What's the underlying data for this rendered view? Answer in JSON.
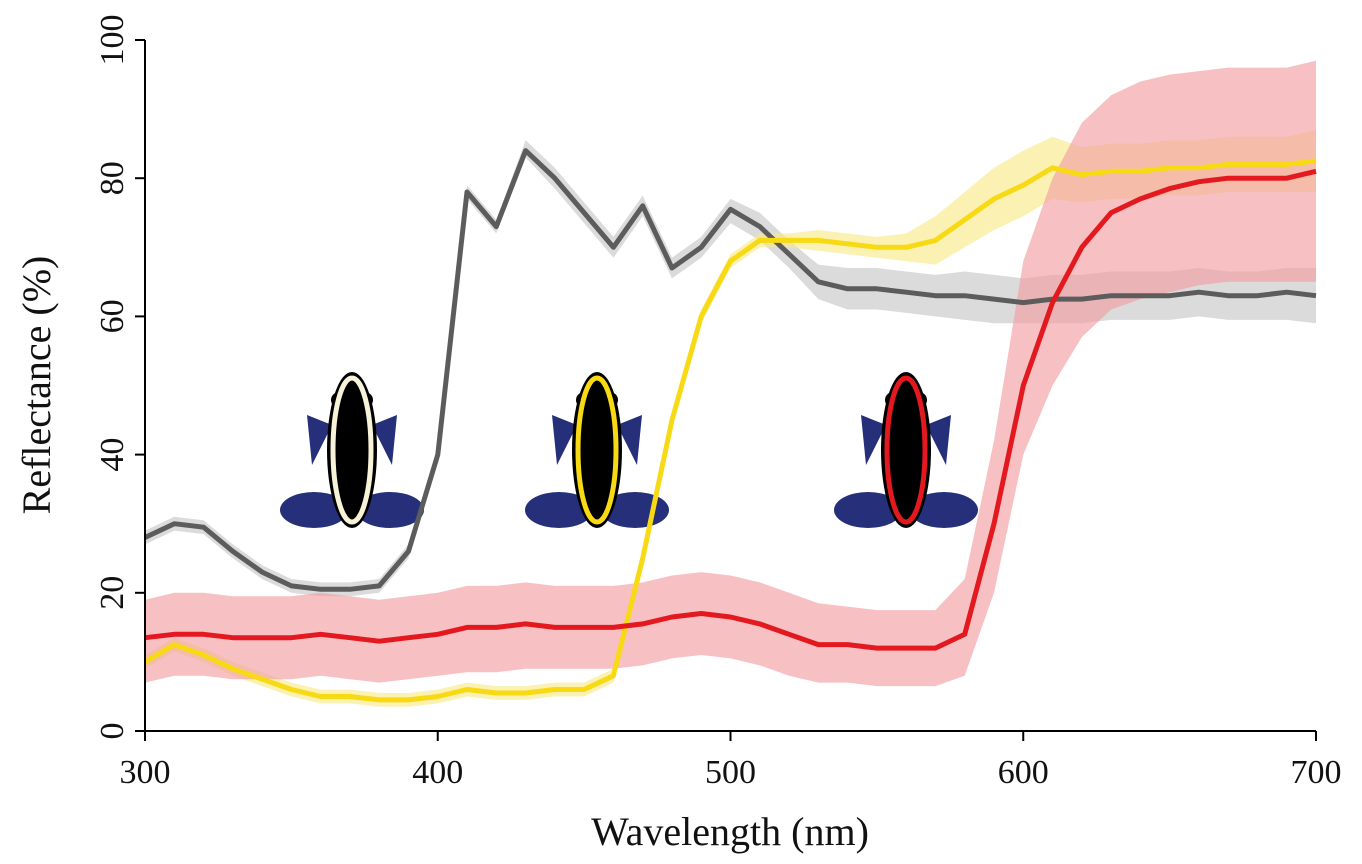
{
  "chart_data": {
    "type": "line",
    "xlabel": "Wavelength (nm)",
    "ylabel": "Reflectance (%)",
    "xlim": [
      300,
      700
    ],
    "ylim": [
      0,
      100
    ],
    "xticks": [
      300,
      400,
      500,
      600,
      700
    ],
    "yticks": [
      0,
      20,
      40,
      60,
      80,
      100
    ],
    "x": [
      300,
      310,
      320,
      330,
      340,
      350,
      360,
      370,
      380,
      390,
      400,
      410,
      420,
      430,
      440,
      450,
      460,
      470,
      480,
      490,
      500,
      510,
      520,
      530,
      540,
      550,
      560,
      570,
      580,
      590,
      600,
      610,
      620,
      630,
      640,
      650,
      660,
      670,
      680,
      690,
      700
    ],
    "series": [
      {
        "color": "#5c5c5c",
        "band_color": "#c8c8c8",
        "values": [
          28,
          30,
          29.5,
          26,
          23,
          21,
          20.5,
          20.5,
          21,
          26,
          40,
          78,
          73,
          84,
          80,
          75,
          70,
          76,
          67,
          70,
          75.5,
          73,
          69,
          65,
          64,
          64,
          63.5,
          63,
          63,
          62.5,
          62,
          62.5,
          62.5,
          63,
          63,
          63,
          63.5,
          63,
          63,
          63.5,
          63
        ],
        "lower": [
          27,
          29,
          28.5,
          25,
          22,
          20,
          19.5,
          19.5,
          20,
          25,
          39,
          77,
          72,
          83,
          78.5,
          73.5,
          68.5,
          74.5,
          65.5,
          68.5,
          73.5,
          71,
          67,
          62.5,
          61,
          61,
          60.5,
          60,
          59.5,
          59,
          59,
          59,
          59,
          59.5,
          59.5,
          59.5,
          60,
          59.5,
          59.5,
          59.5,
          59
        ],
        "upper": [
          29,
          31,
          30.5,
          27,
          24,
          22,
          21.5,
          21.5,
          22,
          27,
          41,
          79,
          74,
          85.5,
          81.5,
          76.5,
          71.5,
          77.5,
          68.5,
          71.5,
          77,
          75,
          71,
          67.5,
          67,
          67,
          66.5,
          66,
          66.5,
          66,
          65.5,
          66,
          66,
          66.5,
          66.5,
          66.5,
          67,
          66.5,
          66.5,
          67,
          67
        ]
      },
      {
        "color": "#f7d914",
        "band_color": "#f7e98a",
        "values": [
          10,
          12.5,
          11,
          9,
          7.5,
          6,
          5,
          5,
          4.5,
          4.5,
          5,
          6,
          5.5,
          5.5,
          6,
          6,
          8,
          25,
          45,
          60,
          68,
          71,
          71,
          71,
          70.5,
          70,
          70,
          71,
          74,
          77,
          79,
          81.5,
          80.5,
          81,
          81,
          81.5,
          81.5,
          82,
          82,
          82,
          82.5
        ],
        "lower": [
          9,
          11.5,
          10,
          8,
          6.5,
          5,
          4,
          4,
          3.5,
          3.5,
          4,
          5,
          4.5,
          4.5,
          5,
          5,
          7,
          24,
          44,
          59,
          67,
          70,
          70,
          69.5,
          69,
          68.5,
          68,
          67.5,
          70,
          72.5,
          74.5,
          77,
          76.5,
          77,
          77,
          77.5,
          77.5,
          78,
          78,
          78,
          78
        ],
        "upper": [
          11,
          13.5,
          12,
          10,
          8.5,
          7,
          6,
          6,
          5.5,
          5.5,
          6,
          7,
          6.5,
          6.5,
          7,
          7,
          9,
          26,
          46,
          61,
          69,
          72,
          72,
          72.5,
          72,
          71.5,
          72,
          74.5,
          78,
          81.5,
          84,
          86,
          84.5,
          85,
          85,
          85.5,
          85.5,
          86,
          86,
          86,
          87
        ]
      },
      {
        "color": "#e3191f",
        "band_color": "#f2a0a4",
        "values": [
          13.5,
          14,
          14,
          13.5,
          13.5,
          13.5,
          14,
          13.5,
          13,
          13.5,
          14,
          15,
          15,
          15.5,
          15,
          15,
          15,
          15.5,
          16.5,
          17,
          16.5,
          15.5,
          14,
          12.5,
          12.5,
          12,
          12,
          12,
          14,
          30,
          50,
          62,
          70,
          75,
          77,
          78.5,
          79.5,
          80,
          80,
          80,
          81
        ],
        "lower": [
          7,
          8,
          8,
          7.5,
          7.5,
          7.5,
          8,
          7.5,
          7,
          7.5,
          8,
          8.5,
          8.5,
          9,
          9,
          9,
          9,
          9.5,
          10.5,
          11,
          10.5,
          9.5,
          8,
          7,
          7,
          6.5,
          6.5,
          6.5,
          8,
          20,
          40,
          50,
          57,
          61,
          62.5,
          63.5,
          64.5,
          65,
          65,
          65,
          65
        ],
        "upper": [
          19,
          20,
          20,
          19.5,
          19.5,
          19.5,
          20,
          19.5,
          19,
          19.5,
          20,
          21,
          21,
          21.5,
          21,
          21,
          21,
          21.5,
          22.5,
          23,
          22.5,
          21.5,
          20,
          18.5,
          18,
          17.5,
          17.5,
          17.5,
          22,
          42,
          68,
          80,
          88,
          92,
          94,
          95,
          95.5,
          96,
          96,
          96,
          97
        ]
      }
    ]
  }
}
